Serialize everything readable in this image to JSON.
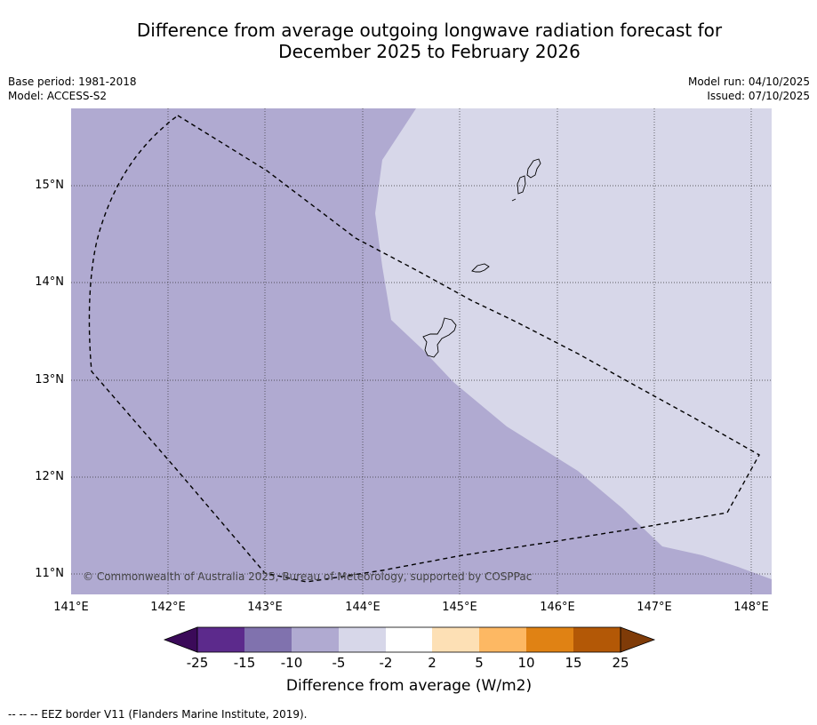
{
  "title_line1": "Difference from average outgoing longwave radiation forecast for",
  "title_line2": "December 2025 to February 2026",
  "meta_left": {
    "base_period": "Base period: 1981-2018",
    "model": "Model: ACCESS-S2"
  },
  "meta_right": {
    "model_run": "Model run: 04/10/2025",
    "issued": "Issued: 07/10/2025"
  },
  "map": {
    "lat_labels": [
      "15°N",
      "14°N",
      "13°N",
      "12°N",
      "11°N"
    ],
    "lon_labels": [
      "141°E",
      "142°E",
      "143°E",
      "144°E",
      "145°E",
      "146°E",
      "147°E",
      "148°E"
    ],
    "copyright": "© Commonwealth of Australia 2025, Bureau of Meteorology, supported by COSPPac",
    "colors": {
      "dark_region": "#b0aad1",
      "light_region": "#d7d7e9"
    }
  },
  "colorbar": {
    "labels": [
      "-25",
      "-15",
      "-10",
      "-5",
      "-2",
      "2",
      "5",
      "10",
      "15",
      "25"
    ],
    "colors": [
      "#3b0a59",
      "#5c2a8c",
      "#8072ae",
      "#b0aad1",
      "#d7d7e9",
      "#ffffff",
      "#fde0b5",
      "#fdb863",
      "#e08214",
      "#b35806",
      "#7f3b08"
    ],
    "title": "Difference from average (W/m2)"
  },
  "footnote": "--  --  -- EEZ border V11 (Flanders Marine Institute, 2019)."
}
